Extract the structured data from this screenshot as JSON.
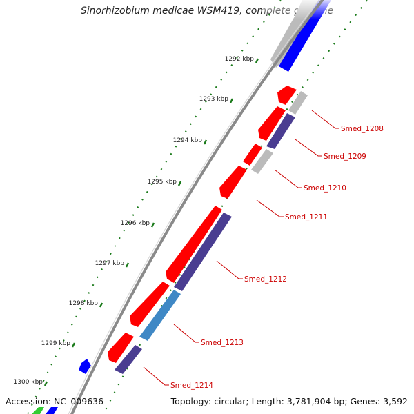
{
  "header": {
    "title": "Sinorhizobium medicae WSM419, complete genome"
  },
  "footer": {
    "accession": "Accession: NC_009636",
    "summary": "Topology: circular; Length: 3,781,904 bp; Genes: 3,592"
  },
  "ticks": [
    "1292 kbp",
    "1293 kbp",
    "1294 kbp",
    "1295 kbp",
    "1296 kbp",
    "1297 kbp",
    "1298 kbp",
    "1299 kbp",
    "1300 kbp"
  ],
  "genes": [
    {
      "label": "Smed_1208"
    },
    {
      "label": "Smed_1209"
    },
    {
      "label": "Smed_1210"
    },
    {
      "label": "Smed_1211"
    },
    {
      "label": "Smed_1212"
    },
    {
      "label": "Smed_1213"
    },
    {
      "label": "Smed_1214"
    }
  ],
  "colors": {
    "forward_cds": "#ff0000",
    "reverse_cds": "#4a3d91",
    "reverse_cds_alt": "#3f88c5",
    "other_feature": "#bbbbbb",
    "ruler_dots": "#1a7a1a",
    "backbone": "#8a8a8a",
    "label_text": "#cc0000",
    "blue_feature": "#0000ff",
    "green_feature": "#33cc33"
  }
}
